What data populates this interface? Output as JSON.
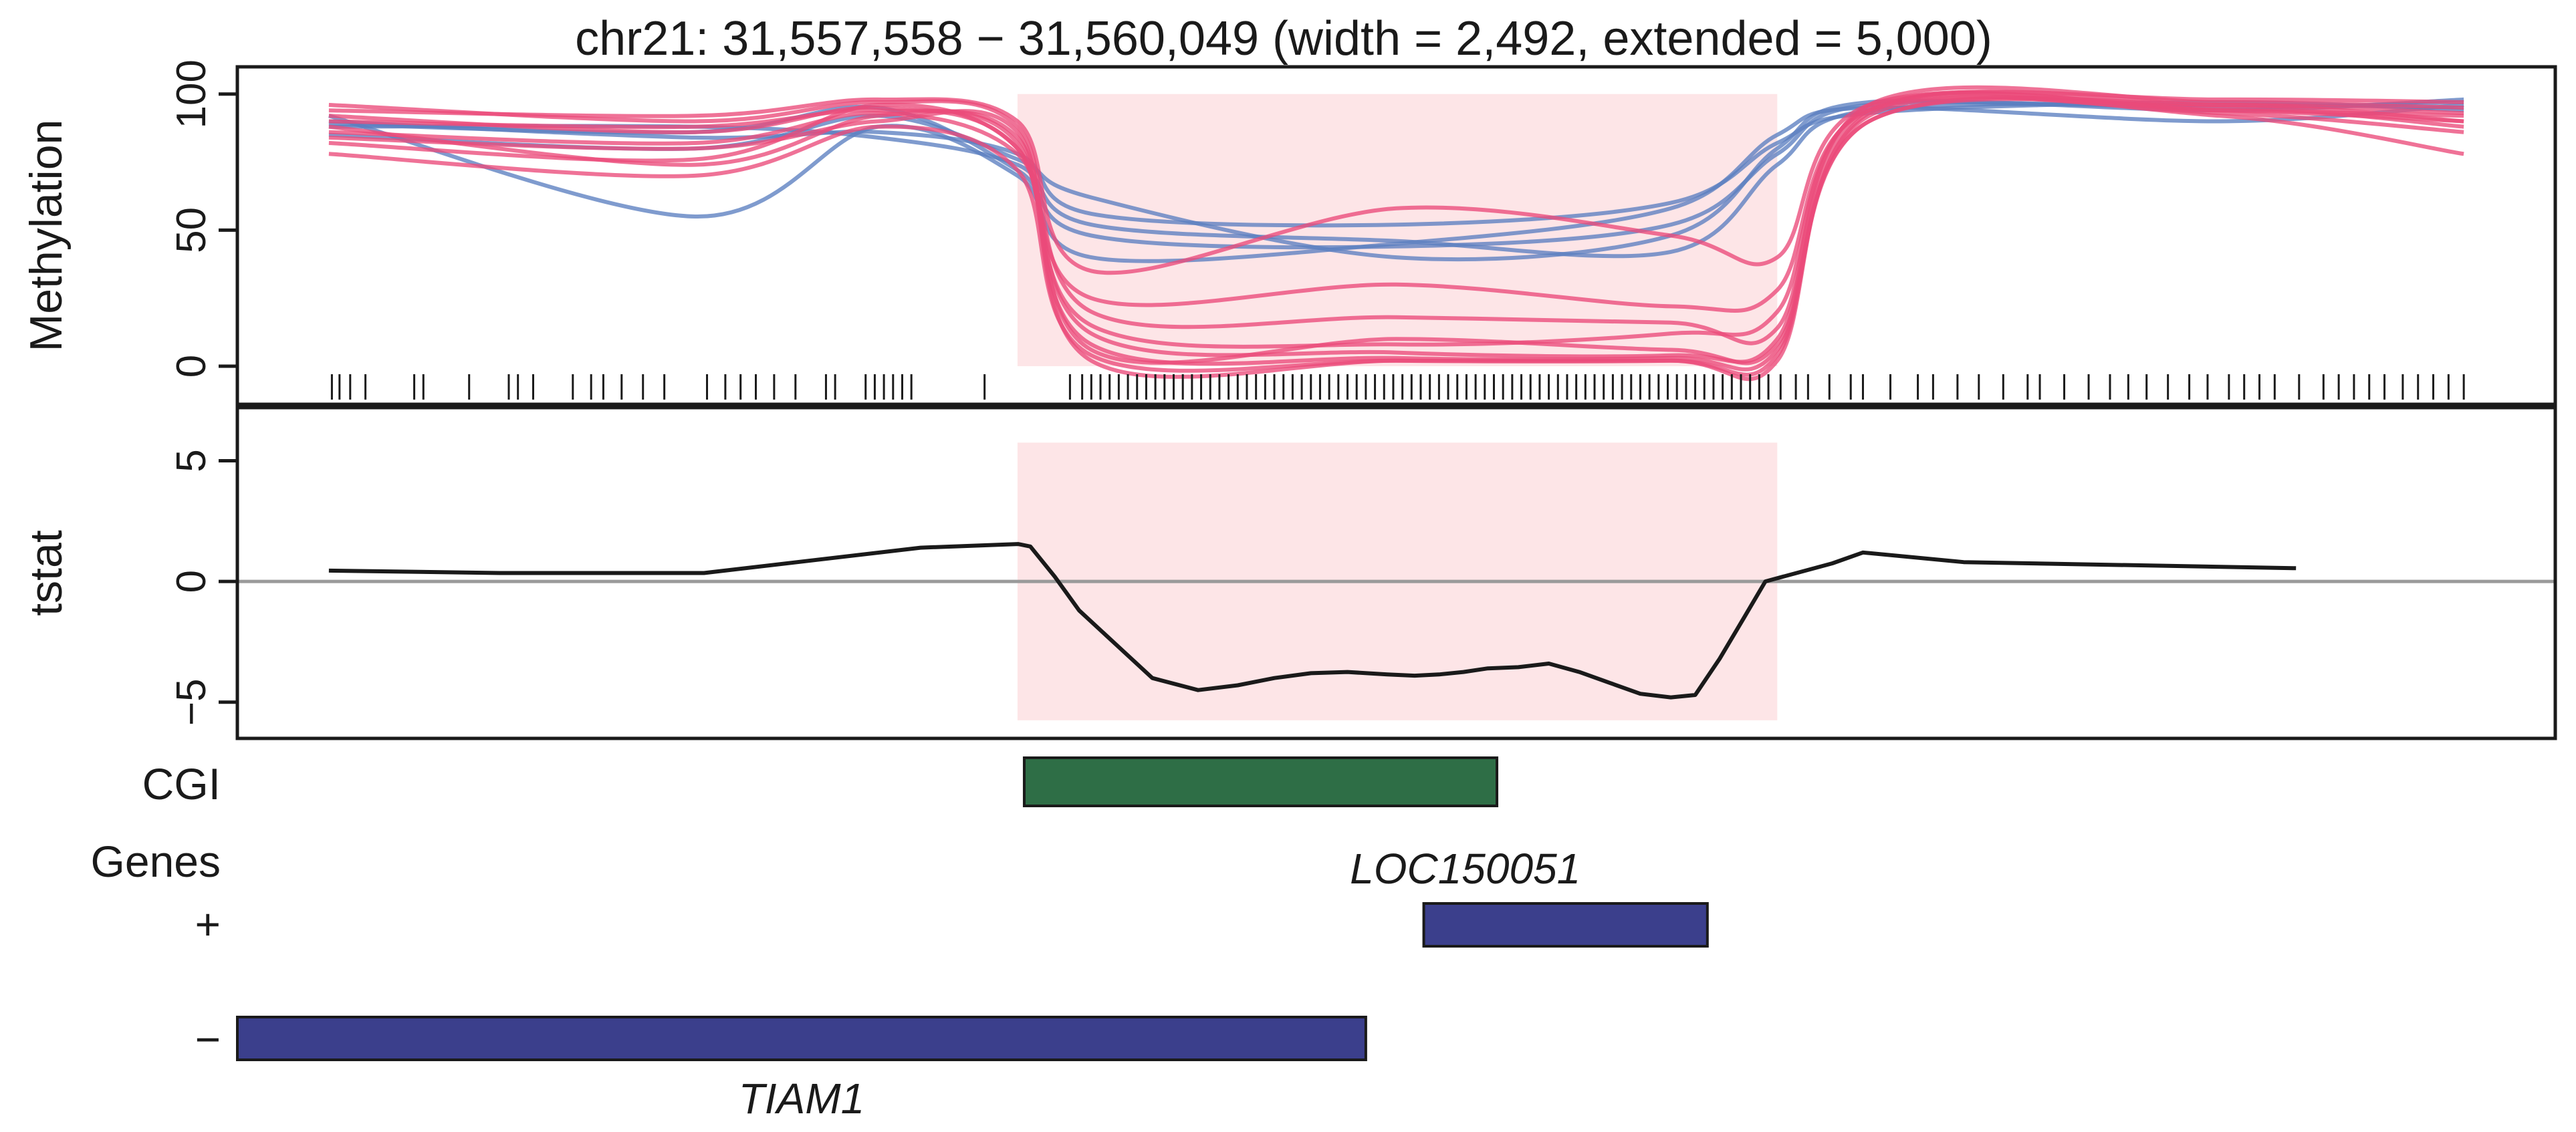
{
  "chart_data": {
    "type": "line",
    "title": "chr21: 31,557,558 − 31,560,049 (width = 2,492, extended = 5,000)",
    "region": {
      "start": 31557558,
      "end": 31560049
    },
    "xlim": [
      31555000,
      31562600
    ],
    "colors": {
      "group_blue": "#5b7fc0",
      "group_red": "#eb4a7a",
      "region_fill": "#fde5e7",
      "cgi": "#2e6e46",
      "gene": "#3b3f8c",
      "zero_line": "#9a9a9a"
    },
    "methylation": {
      "ylabel": "Methylation",
      "ylim": [
        -14,
        110
      ],
      "yticks": [
        "0",
        "50",
        "100"
      ],
      "ytick_values": [
        0,
        50,
        100
      ],
      "x": [
        31555300,
        31556500,
        31557100,
        31557558,
        31557800,
        31558800,
        31559700,
        31560049,
        31560350,
        31561500,
        31562300
      ],
      "series": [
        {
          "group": "blue",
          "values": [
            89,
            86,
            95,
            72,
            48,
            44,
            52,
            78,
            96,
            95,
            97
          ]
        },
        {
          "group": "blue",
          "values": [
            92,
            55,
            88,
            70,
            40,
            45,
            58,
            85,
            95,
            90,
            96
          ]
        },
        {
          "group": "blue",
          "values": [
            88,
            88,
            84,
            74,
            52,
            46,
            42,
            74,
            94,
            96,
            95
          ]
        },
        {
          "group": "blue",
          "values": [
            85,
            80,
            92,
            76,
            62,
            40,
            48,
            80,
            97,
            94,
            98
          ]
        },
        {
          "group": "blue",
          "values": [
            90,
            84,
            86,
            78,
            56,
            52,
            60,
            82,
            93,
            97,
            94
          ]
        },
        {
          "group": "red",
          "values": [
            92,
            86,
            95,
            80,
            8,
            3,
            3,
            6,
            90,
            96,
            90
          ]
        },
        {
          "group": "red",
          "values": [
            88,
            74,
            92,
            84,
            12,
            5,
            4,
            10,
            94,
            94,
            92
          ]
        },
        {
          "group": "red",
          "values": [
            96,
            90,
            97,
            88,
            20,
            18,
            16,
            14,
            96,
            97,
            95
          ]
        },
        {
          "group": "red",
          "values": [
            78,
            70,
            88,
            72,
            4,
            2,
            2,
            4,
            92,
            92,
            78
          ]
        },
        {
          "group": "red",
          "values": [
            94,
            92,
            98,
            90,
            35,
            58,
            48,
            40,
            96,
            98,
            97
          ]
        },
        {
          "group": "red",
          "values": [
            84,
            80,
            90,
            86,
            6,
            10,
            6,
            8,
            90,
            95,
            88
          ]
        },
        {
          "group": "red",
          "values": [
            90,
            88,
            94,
            82,
            2,
            2,
            2,
            2,
            93,
            96,
            93
          ]
        },
        {
          "group": "red",
          "values": [
            82,
            76,
            96,
            80,
            15,
            8,
            12,
            20,
            95,
            94,
            90
          ]
        },
        {
          "group": "red",
          "values": [
            86,
            82,
            93,
            78,
            25,
            30,
            22,
            28,
            94,
            93,
            86
          ]
        }
      ],
      "cpg_positions": [
        31555310,
        31555335,
        31555370,
        31555420,
        31555580,
        31555610,
        31555760,
        31555890,
        31555920,
        31555970,
        31556100,
        31556160,
        31556200,
        31556260,
        31556330,
        31556400,
        31556540,
        31556600,
        31556650,
        31556700,
        31556760,
        31556830,
        31556930,
        31556960,
        31557060,
        31557090,
        31557120,
        31557150,
        31557180,
        31557210,
        31557450,
        31557730,
        31557770,
        31557800,
        31557830,
        31557860,
        31557890,
        31557920,
        31557950,
        31557980,
        31558010,
        31558040,
        31558070,
        31558100,
        31558130,
        31558160,
        31558190,
        31558220,
        31558250,
        31558280,
        31558310,
        31558340,
        31558370,
        31558400,
        31558430,
        31558460,
        31558490,
        31558520,
        31558550,
        31558580,
        31558610,
        31558640,
        31558670,
        31558700,
        31558730,
        31558760,
        31558790,
        31558820,
        31558850,
        31558880,
        31558910,
        31558940,
        31558970,
        31559000,
        31559030,
        31559060,
        31559090,
        31559120,
        31559150,
        31559180,
        31559210,
        31559240,
        31559270,
        31559300,
        31559330,
        31559360,
        31559390,
        31559420,
        31559450,
        31559480,
        31559510,
        31559540,
        31559570,
        31559600,
        31559630,
        31559660,
        31559690,
        31559720,
        31559750,
        31559780,
        31559810,
        31559840,
        31559870,
        31559900,
        31559930,
        31559960,
        31559990,
        31560020,
        31560060,
        31560110,
        31560150,
        31560220,
        31560290,
        31560330,
        31560420,
        31560510,
        31560560,
        31560640,
        31560710,
        31560790,
        31560870,
        31560910,
        31560990,
        31561070,
        31561140,
        31561200,
        31561260,
        31561330,
        31561400,
        31561460,
        31561530,
        31561580,
        31561630,
        31561680,
        31561760,
        31561840,
        31561890,
        31561940,
        31561990,
        31562040,
        31562100,
        31562150,
        31562200,
        31562250,
        31562300
      ]
    },
    "tstat": {
      "ylabel": "tstat",
      "ylim": [
        -6.5,
        7.2
      ],
      "yticks": [
        "−5",
        "0",
        "5"
      ],
      "ytick_values": [
        -5,
        0,
        5
      ],
      "x": [
        31555300,
        31555860,
        31556530,
        31557240,
        31557560,
        31557600,
        31557680,
        31557760,
        31557880,
        31558000,
        31558150,
        31558280,
        31558400,
        31558520,
        31558640,
        31558770,
        31558860,
        31558940,
        31559020,
        31559100,
        31559200,
        31559300,
        31559400,
        31559500,
        31559600,
        31559700,
        31559780,
        31559860,
        31559940,
        31560010,
        31560230,
        31560330,
        31560660,
        31561750
      ],
      "values": [
        0.45,
        0.35,
        0.35,
        1.4,
        1.55,
        1.45,
        0.2,
        -1.2,
        -2.6,
        -4.0,
        -4.5,
        -4.3,
        -4.0,
        -3.8,
        -3.75,
        -3.85,
        -3.9,
        -3.85,
        -3.75,
        -3.6,
        -3.55,
        -3.4,
        -3.75,
        -4.2,
        -4.65,
        -4.8,
        -4.7,
        -3.2,
        -1.5,
        0.0,
        0.75,
        1.2,
        0.8,
        0.55
      ]
    },
    "annotations": {
      "cgi_label": "CGI",
      "genes_label": "Genes",
      "plus_label": "+",
      "minus_label": "−",
      "cgi": [
        {
          "start": 31557580,
          "end": 31559130
        }
      ],
      "genes_plus": [
        {
          "name": "LOC150051",
          "start": 31558890,
          "end": 31559820
        }
      ],
      "genes_minus": [
        {
          "name": "TIAM1",
          "start": 31555000,
          "end": 31558700
        }
      ]
    }
  }
}
